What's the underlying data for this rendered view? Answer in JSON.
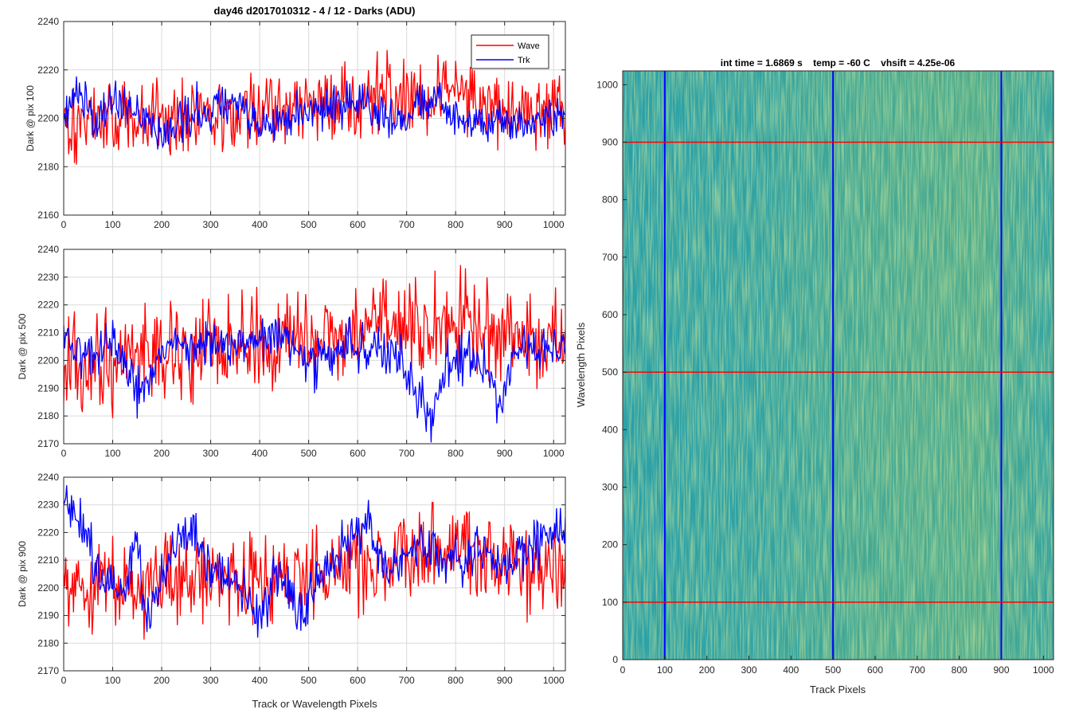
{
  "figure": {
    "title": "day46 d2017010312 - 4 / 12 - Darks (ADU)",
    "bottom_xlabel": "Track or Wavelength Pixels"
  },
  "legend": {
    "entries": [
      {
        "label": "Wave",
        "color": "#ff0000"
      },
      {
        "label": "Trk",
        "color": "#0000ff"
      }
    ]
  },
  "colors": {
    "wave": "#ff0000",
    "trk": "#0000ff",
    "grid": "#d9d9d9",
    "axis": "#262626",
    "image_base": "#2aa0a8",
    "image_warm": "#9fc750"
  },
  "chart_data": [
    {
      "type": "line",
      "ylabel": "Dark @ pix 100",
      "xlim": [
        0,
        1024
      ],
      "ylim": [
        2160,
        2240
      ],
      "xticks": [
        "0",
        "100",
        "200",
        "300",
        "400",
        "500",
        "600",
        "700",
        "800",
        "900",
        "1000"
      ],
      "yticks": [
        "2160",
        "2180",
        "2200",
        "2220",
        "2240"
      ],
      "grid": true,
      "legend": "top-right",
      "series": [
        {
          "name": "Wave",
          "mean": 2203,
          "noise": 9,
          "trend": [
            [
              0,
              2200
            ],
            [
              100,
              2199
            ],
            [
              200,
              2201
            ],
            [
              300,
              2204
            ],
            [
              400,
              2203
            ],
            [
              500,
              2204
            ],
            [
              600,
              2207
            ],
            [
              700,
              2210
            ],
            [
              800,
              2209
            ],
            [
              900,
              2205
            ],
            [
              1024,
              2202
            ]
          ]
        },
        {
          "name": "Trk",
          "mean": 2200,
          "noise": 5,
          "trend": [
            [
              0,
              2200
            ],
            [
              30,
              2213
            ],
            [
              60,
              2198
            ],
            [
              100,
              2206
            ],
            [
              150,
              2205
            ],
            [
              200,
              2193
            ],
            [
              260,
              2202
            ],
            [
              300,
              2204
            ],
            [
              360,
              2205
            ],
            [
              400,
              2196
            ],
            [
              460,
              2201
            ],
            [
              500,
              2203
            ],
            [
              560,
              2205
            ],
            [
              600,
              2207
            ],
            [
              660,
              2200
            ],
            [
              700,
              2202
            ],
            [
              760,
              2207
            ],
            [
              800,
              2201
            ],
            [
              860,
              2197
            ],
            [
              900,
              2200
            ],
            [
              950,
              2196
            ],
            [
              1024,
              2202
            ]
          ]
        }
      ]
    },
    {
      "type": "line",
      "ylabel": "Dark @ pix 500",
      "xlim": [
        0,
        1024
      ],
      "ylim": [
        2170,
        2240
      ],
      "xticks": [
        "0",
        "100",
        "200",
        "300",
        "400",
        "500",
        "600",
        "700",
        "800",
        "900",
        "1000"
      ],
      "yticks": [
        "2170",
        "2180",
        "2190",
        "2200",
        "2210",
        "2220",
        "2230",
        "2240"
      ],
      "grid": true,
      "series": [
        {
          "name": "Wave",
          "mean": 2205,
          "noise": 9,
          "trend": [
            [
              0,
              2203
            ],
            [
              100,
              2198
            ],
            [
              200,
              2201
            ],
            [
              300,
              2205
            ],
            [
              400,
              2206
            ],
            [
              500,
              2207
            ],
            [
              600,
              2210
            ],
            [
              700,
              2212
            ],
            [
              800,
              2214
            ],
            [
              900,
              2210
            ],
            [
              1024,
              2204
            ]
          ]
        },
        {
          "name": "Trk",
          "mean": 2203,
          "noise": 5,
          "trend": [
            [
              0,
              2206
            ],
            [
              60,
              2201
            ],
            [
              100,
              2207
            ],
            [
              150,
              2190
            ],
            [
              200,
              2204
            ],
            [
              260,
              2205
            ],
            [
              300,
              2205
            ],
            [
              360,
              2207
            ],
            [
              400,
              2208
            ],
            [
              460,
              2207
            ],
            [
              500,
              2196
            ],
            [
              560,
              2205
            ],
            [
              600,
              2206
            ],
            [
              680,
              2202
            ],
            [
              720,
              2190
            ],
            [
              750,
              2178
            ],
            [
              780,
              2195
            ],
            [
              800,
              2201
            ],
            [
              860,
              2200
            ],
            [
              890,
              2182
            ],
            [
              920,
              2205
            ],
            [
              1024,
              2205
            ]
          ]
        }
      ]
    },
    {
      "type": "line",
      "ylabel": "Dark @ pix 900",
      "xlim": [
        0,
        1024
      ],
      "ylim": [
        2170,
        2240
      ],
      "xticks": [
        "0",
        "100",
        "200",
        "300",
        "400",
        "500",
        "600",
        "700",
        "800",
        "900",
        "1000"
      ],
      "yticks": [
        "2170",
        "2180",
        "2190",
        "2200",
        "2210",
        "2220",
        "2230",
        "2240"
      ],
      "grid": true,
      "series": [
        {
          "name": "Wave",
          "mean": 2203,
          "noise": 9,
          "trend": [
            [
              0,
              2203
            ],
            [
              100,
              2200
            ],
            [
              200,
              2202
            ],
            [
              300,
              2205
            ],
            [
              400,
              2204
            ],
            [
              500,
              2205
            ],
            [
              600,
              2208
            ],
            [
              700,
              2212
            ],
            [
              800,
              2214
            ],
            [
              900,
              2210
            ],
            [
              1024,
              2206
            ]
          ]
        },
        {
          "name": "Trk",
          "mean": 2207,
          "noise": 5,
          "trend": [
            [
              0,
              2228
            ],
            [
              40,
              2222
            ],
            [
              80,
              2202
            ],
            [
              120,
              2200
            ],
            [
              150,
              2218
            ],
            [
              170,
              2185
            ],
            [
              200,
              2205
            ],
            [
              260,
              2222
            ],
            [
              300,
              2205
            ],
            [
              360,
              2200
            ],
            [
              400,
              2190
            ],
            [
              430,
              2206
            ],
            [
              460,
              2200
            ],
            [
              490,
              2190
            ],
            [
              520,
              2205
            ],
            [
              560,
              2212
            ],
            [
              600,
              2218
            ],
            [
              620,
              2225
            ],
            [
              660,
              2206
            ],
            [
              700,
              2212
            ],
            [
              760,
              2216
            ],
            [
              800,
              2210
            ],
            [
              860,
              2214
            ],
            [
              900,
              2207
            ],
            [
              960,
              2216
            ],
            [
              1024,
              2220
            ]
          ]
        }
      ]
    },
    {
      "type": "heatmap",
      "title": "int time = 1.6869 s    temp = -60 C    vhsift = 4.25e-06",
      "xlabel": "Track Pixels",
      "ylabel": "Wavelength Pixels",
      "xlim": [
        0,
        1024
      ],
      "ylim": [
        0,
        1024
      ],
      "xticks": [
        "0",
        "100",
        "200",
        "300",
        "400",
        "500",
        "600",
        "700",
        "800",
        "900",
        "1000"
      ],
      "yticks": [
        "0",
        "100",
        "200",
        "300",
        "400",
        "500",
        "600",
        "700",
        "800",
        "900",
        "1000"
      ],
      "vertical_lines": {
        "values": [
          100,
          500,
          900
        ],
        "color": "#0000ff"
      },
      "horizontal_lines": {
        "values": [
          100,
          500,
          900
        ],
        "color": "#ff0000"
      }
    }
  ]
}
